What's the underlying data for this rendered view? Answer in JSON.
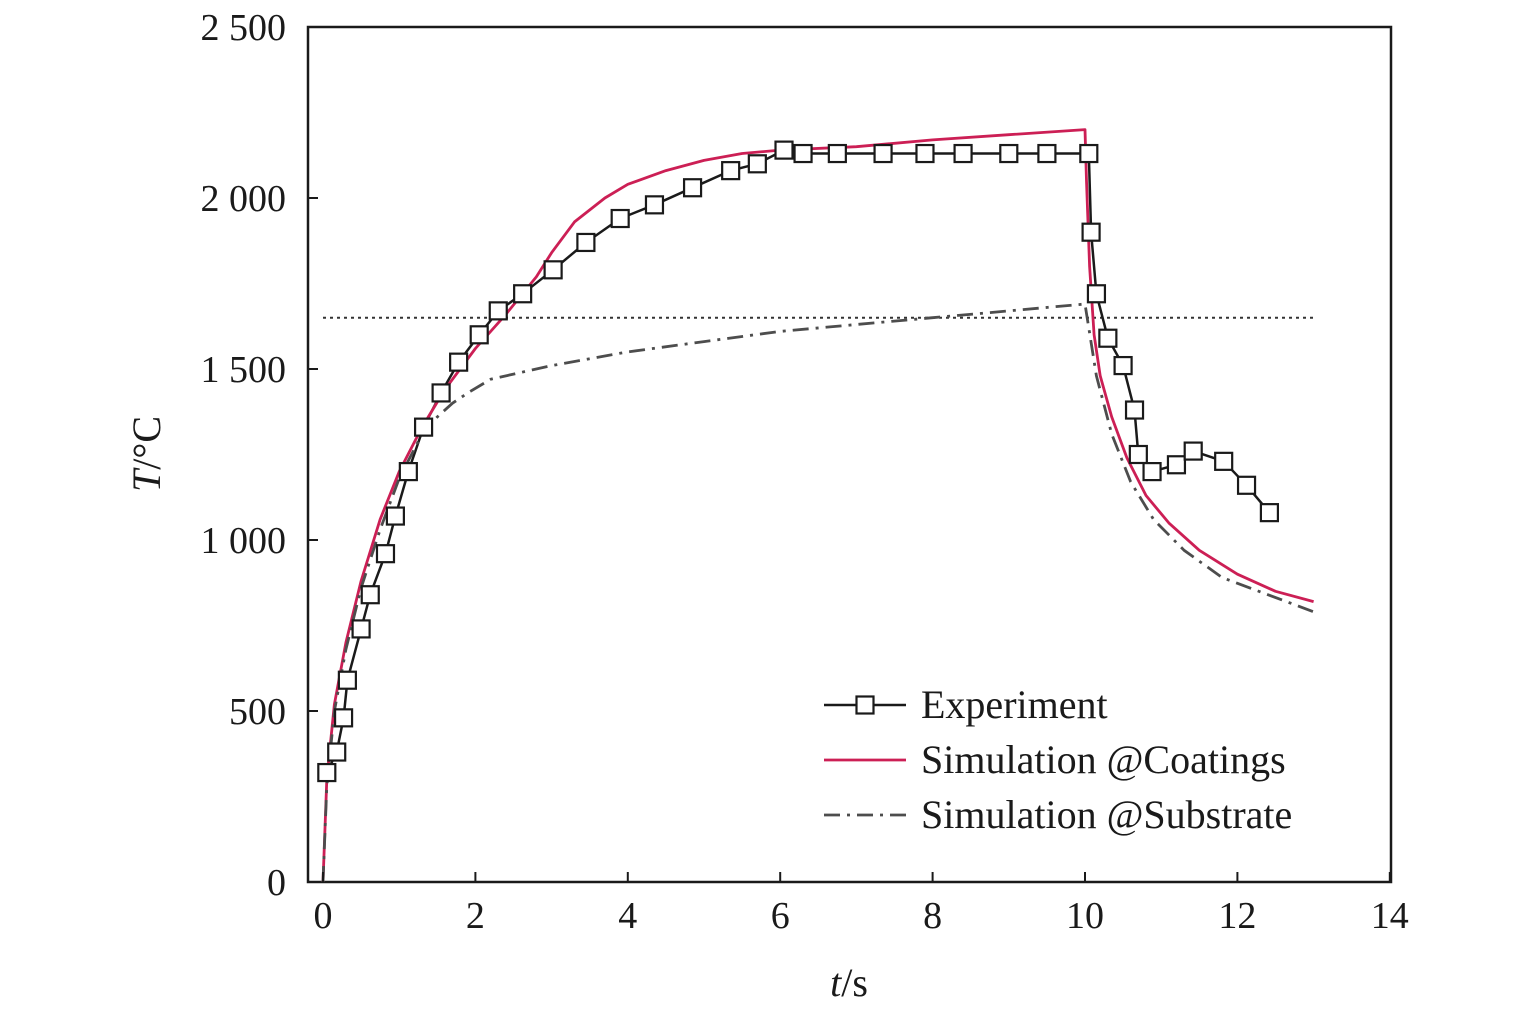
{
  "chart_data": {
    "type": "line",
    "xlabel_var": "t",
    "xlabel_unit": "/s",
    "ylabel_var": "T",
    "ylabel_unit": "/°C",
    "xlim": [
      -0.2,
      14
    ],
    "ylim": [
      0,
      2500
    ],
    "xticks": [
      0,
      2,
      4,
      6,
      8,
      10,
      12,
      14
    ],
    "xtick_labels": [
      "0",
      "2",
      "4",
      "6",
      "8",
      "10",
      "12",
      "14"
    ],
    "yticks": [
      0,
      500,
      1000,
      1500,
      2000,
      2500
    ],
    "ytick_labels": [
      "0",
      "500",
      "1 000",
      "1 500",
      "2 000",
      "2 500"
    ],
    "grid": false,
    "legend_position": "bottom-right",
    "reference_line": {
      "y": 1650,
      "x_range": [
        0,
        13
      ],
      "style": "dotted",
      "color": "#333333"
    },
    "series": [
      {
        "name": "Experiment",
        "color": "#1a1a1a",
        "marker": "square",
        "line_style": "solid",
        "x": [
          0.05,
          0.18,
          0.27,
          0.32,
          0.5,
          0.62,
          0.82,
          0.95,
          1.12,
          1.32,
          1.55,
          1.78,
          2.05,
          2.3,
          2.62,
          3.02,
          3.45,
          3.9,
          4.35,
          4.85,
          5.35,
          5.7,
          6.05,
          6.3,
          6.75,
          7.35,
          7.9,
          8.4,
          9.0,
          9.5,
          10.05,
          10.08,
          10.15,
          10.3,
          10.5,
          10.65,
          10.7,
          10.88,
          11.2,
          11.42,
          11.82,
          12.12,
          12.42
        ],
        "y": [
          320,
          380,
          480,
          590,
          740,
          840,
          960,
          1070,
          1200,
          1330,
          1430,
          1520,
          1600,
          1670,
          1720,
          1790,
          1870,
          1940,
          1980,
          2030,
          2080,
          2100,
          2140,
          2130,
          2130,
          2130,
          2130,
          2130,
          2130,
          2130,
          2130,
          1900,
          1720,
          1590,
          1510,
          1380,
          1250,
          1200,
          1220,
          1260,
          1230,
          1160,
          1080
        ]
      },
      {
        "name": "Simulation @Coatings",
        "color": "#cc1f55",
        "line_style": "solid",
        "x": [
          0.0,
          0.05,
          0.15,
          0.3,
          0.5,
          0.75,
          1.0,
          1.3,
          1.6,
          2.0,
          2.4,
          2.8,
          3.0,
          3.3,
          3.7,
          4.0,
          4.5,
          5.0,
          5.5,
          6.0,
          7.0,
          8.0,
          9.0,
          10.0,
          10.02,
          10.06,
          10.12,
          10.2,
          10.35,
          10.55,
          10.8,
          11.1,
          11.5,
          12.0,
          12.5,
          13.0
        ],
        "y": [
          0,
          300,
          520,
          700,
          880,
          1060,
          1200,
          1330,
          1440,
          1560,
          1660,
          1770,
          1840,
          1930,
          2000,
          2040,
          2080,
          2110,
          2130,
          2140,
          2150,
          2170,
          2185,
          2200,
          2050,
          1800,
          1600,
          1480,
          1360,
          1240,
          1130,
          1050,
          970,
          900,
          850,
          820
        ]
      },
      {
        "name": "Simulation @Substrate",
        "color": "#4d4d4d",
        "line_style": "dashdot",
        "x": [
          0.0,
          0.05,
          0.15,
          0.3,
          0.5,
          0.75,
          1.0,
          1.3,
          1.5,
          1.7,
          1.9,
          2.2,
          2.6,
          3.0,
          4.0,
          5.0,
          6.0,
          7.0,
          8.0,
          9.0,
          10.0,
          10.05,
          10.15,
          10.35,
          10.6,
          10.9,
          11.3,
          11.8,
          12.4,
          13.0
        ],
        "y": [
          0,
          280,
          500,
          680,
          860,
          1030,
          1180,
          1310,
          1360,
          1400,
          1430,
          1470,
          1490,
          1510,
          1550,
          1580,
          1610,
          1630,
          1650,
          1670,
          1690,
          1620,
          1480,
          1310,
          1170,
          1060,
          970,
          890,
          840,
          790
        ]
      }
    ]
  }
}
